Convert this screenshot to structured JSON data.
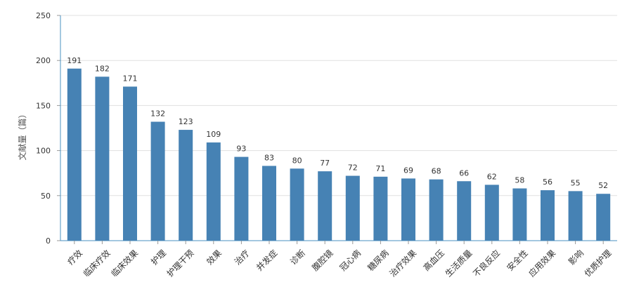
{
  "chart_data": {
    "type": "bar",
    "title": "",
    "xlabel": "",
    "ylabel": "文献量（篇）",
    "ylim": [
      0,
      250
    ],
    "yticks": [
      0,
      50,
      100,
      150,
      200,
      250
    ],
    "grid": true,
    "bar_color": "#4682b4",
    "categories": [
      "疗效",
      "临床疗效",
      "临床效果",
      "护理",
      "护理干预",
      "效果",
      "治疗",
      "并发症",
      "诊断",
      "腹腔镜",
      "冠心病",
      "糖尿病",
      "治疗效果",
      "高血压",
      "生活质量",
      "不良反应",
      "安全性",
      "应用效果",
      "影响",
      "优质护理"
    ],
    "values": [
      191,
      182,
      171,
      132,
      123,
      109,
      93,
      83,
      80,
      77,
      72,
      71,
      69,
      68,
      66,
      62,
      58,
      56,
      55,
      52
    ]
  }
}
